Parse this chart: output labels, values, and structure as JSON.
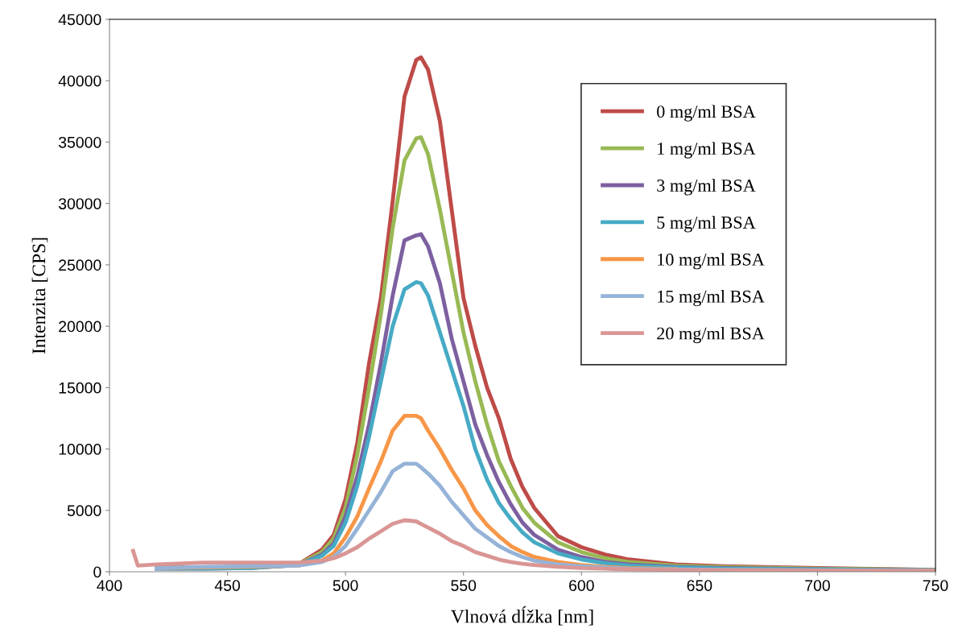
{
  "chart_data": {
    "type": "line",
    "xlabel": "Vlnová dĺžka [nm]",
    "ylabel": "Intenzita [CPS]",
    "x": [
      410,
      412,
      420,
      440,
      460,
      480,
      490,
      495,
      500,
      505,
      510,
      515,
      520,
      525,
      530,
      532,
      535,
      540,
      545,
      550,
      555,
      560,
      565,
      570,
      575,
      580,
      590,
      600,
      610,
      620,
      640,
      660,
      700,
      750
    ],
    "series": [
      {
        "name": "0 mg/ml BSA",
        "color": "#be4b48",
        "values": [
          null,
          null,
          350,
          350,
          400,
          600,
          1800,
          3000,
          5900,
          10500,
          17000,
          22300,
          30200,
          38700,
          41700,
          41900,
          40900,
          36700,
          29500,
          22300,
          18400,
          15000,
          12500,
          9200,
          6900,
          5200,
          2900,
          2000,
          1400,
          1000,
          600,
          450,
          300,
          150
        ]
      },
      {
        "name": "1 mg/ml BSA",
        "color": "#98b954",
        "values": [
          null,
          null,
          300,
          300,
          350,
          600,
          1600,
          2700,
          5200,
          9500,
          15000,
          21000,
          28000,
          33500,
          35300,
          35400,
          34000,
          29500,
          24500,
          19500,
          15500,
          12000,
          9000,
          7000,
          5200,
          4000,
          2400,
          1600,
          1100,
          800,
          500,
          380,
          250,
          150
        ]
      },
      {
        "name": "3 mg/ml BSA",
        "color": "#7d60a0",
        "values": [
          null,
          null,
          250,
          250,
          300,
          550,
          1400,
          2300,
          4500,
          7800,
          12000,
          17000,
          22500,
          27000,
          27400,
          27500,
          26500,
          23500,
          19000,
          15500,
          12000,
          9500,
          7300,
          5500,
          4000,
          3000,
          1800,
          1200,
          800,
          600,
          400,
          300,
          200,
          120
        ]
      },
      {
        "name": "5 mg/ml BSA",
        "color": "#46aac5",
        "values": [
          null,
          null,
          250,
          250,
          300,
          550,
          1300,
          2100,
          4000,
          7000,
          11000,
          15500,
          20000,
          23000,
          23600,
          23500,
          22500,
          19500,
          16500,
          13500,
          10000,
          7500,
          5600,
          4300,
          3200,
          2400,
          1500,
          1000,
          700,
          500,
          350,
          250,
          180,
          120
        ]
      },
      {
        "name": "10 mg/ml BSA",
        "color": "#f79646",
        "values": [
          null,
          null,
          300,
          350,
          400,
          500,
          900,
          1500,
          2800,
          4500,
          6800,
          9000,
          11500,
          12700,
          12700,
          12500,
          11500,
          10000,
          8300,
          6800,
          5000,
          3800,
          2900,
          2100,
          1600,
          1200,
          800,
          550,
          400,
          300,
          220,
          null,
          null,
          null
        ]
      },
      {
        "name": "15 mg/ml BSA",
        "color": "#95b3d7",
        "values": [
          null,
          null,
          300,
          400,
          450,
          500,
          800,
          1200,
          2100,
          3500,
          5000,
          6500,
          8200,
          8800,
          8800,
          8500,
          8000,
          7000,
          5700,
          4600,
          3500,
          2800,
          2100,
          1600,
          1200,
          900,
          600,
          450,
          350,
          250,
          200,
          160,
          120,
          100
        ]
      },
      {
        "name": "20 mg/ml BSA",
        "color": "#d99694",
        "values": [
          1700,
          500,
          600,
          750,
          750,
          750,
          900,
          1100,
          1500,
          2000,
          2700,
          3300,
          3900,
          4200,
          4100,
          3900,
          3600,
          3100,
          2500,
          2100,
          1600,
          1300,
          1000,
          800,
          650,
          550,
          400,
          300,
          250,
          200,
          150,
          130,
          110,
          90
        ]
      }
    ],
    "xlim": [
      400,
      750
    ],
    "xticks": [
      400,
      450,
      500,
      550,
      600,
      650,
      700,
      750
    ],
    "ylim": [
      0,
      45000
    ],
    "yticks": [
      0,
      5000,
      10000,
      15000,
      20000,
      25000,
      30000,
      35000,
      40000,
      45000
    ],
    "grid": false,
    "legend": "top right",
    "marker": "none",
    "line_style": "solid"
  }
}
